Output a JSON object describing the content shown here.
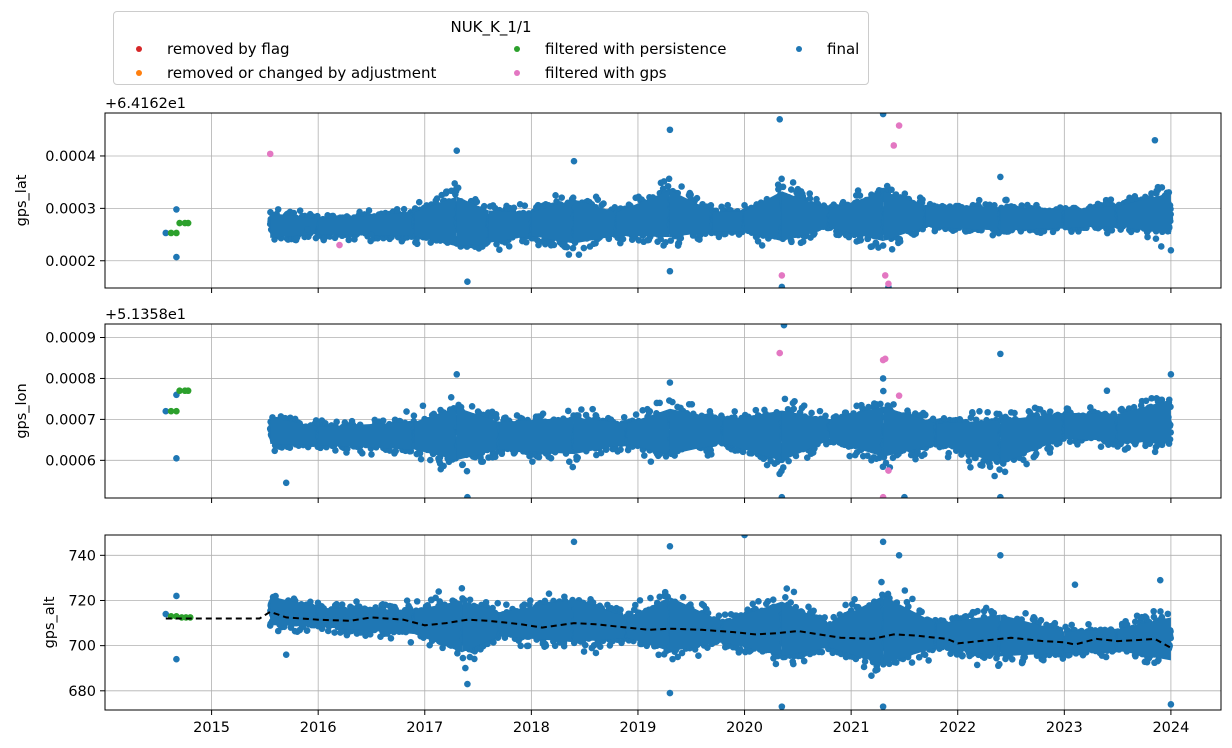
{
  "legend": {
    "title": "NUK_K_1/1",
    "entries": [
      {
        "label": "removed by flag",
        "color": "#d62728"
      },
      {
        "label": "removed or changed by adjustment",
        "color": "#ff7f0e"
      },
      {
        "label": "filtered with persistence",
        "color": "#2ca02c"
      },
      {
        "label": "filtered with gps",
        "color": "#e377c2"
      },
      {
        "label": "final",
        "color": "#1f77b4"
      }
    ]
  },
  "chart_data": [
    {
      "type": "scatter",
      "ylabel": "gps_lat",
      "offset_label": "+6.4162e1",
      "offset": 64.162,
      "ylim": [
        0.000148,
        0.000482
      ],
      "yticks": [
        0.0002,
        0.0003,
        0.0004
      ],
      "ytick_labels": [
        "0.0002",
        "0.0003",
        "0.0004"
      ],
      "grid": true,
      "final": {
        "points": [
          [
            2014.57,
            0.000253
          ],
          [
            2014.67,
            0.000298
          ],
          [
            2014.67,
            0.000207
          ],
          [
            2015.9,
            0.00026
          ],
          [
            2016.5,
            0.00025
          ],
          [
            2017.3,
            0.00041
          ],
          [
            2017.4,
            0.00016
          ],
          [
            2018.4,
            0.00039
          ],
          [
            2019.3,
            0.00045
          ],
          [
            2019.3,
            0.00018
          ],
          [
            2020.33,
            0.00047
          ],
          [
            2020.35,
            0.00015
          ],
          [
            2021.3,
            0.00048
          ],
          [
            2021.35,
            0.00015
          ],
          [
            2022.4,
            0.00036
          ],
          [
            2023.85,
            0.00043
          ],
          [
            2024.0,
            0.00022
          ]
        ],
        "envelope": [
          {
            "x": 2015.55,
            "lo": 0.000225,
            "hi": 0.00031,
            "s": 1e-05
          },
          {
            "x": 2016.0,
            "lo": 0.00024,
            "hi": 0.00029,
            "s": 1e-05
          },
          {
            "x": 2016.9,
            "lo": 0.00023,
            "hi": 0.00031,
            "s": 1.2e-05
          },
          {
            "x": 2017.3,
            "lo": 0.00019,
            "hi": 0.00036,
            "s": 1.2e-05
          },
          {
            "x": 2017.6,
            "lo": 0.00021,
            "hi": 0.00032,
            "s": 1.2e-05
          },
          {
            "x": 2018.0,
            "lo": 0.00023,
            "hi": 0.00031,
            "s": 1.2e-05
          },
          {
            "x": 2018.4,
            "lo": 0.0002,
            "hi": 0.00035,
            "s": 1.2e-05
          },
          {
            "x": 2018.8,
            "lo": 0.00023,
            "hi": 0.00031,
            "s": 1.2e-05
          },
          {
            "x": 2019.3,
            "lo": 0.00021,
            "hi": 0.00037,
            "s": 1.2e-05
          },
          {
            "x": 2019.7,
            "lo": 0.00024,
            "hi": 0.00031,
            "s": 1.2e-05
          },
          {
            "x": 2020.0,
            "lo": 0.00024,
            "hi": 0.00031,
            "s": 1.2e-05
          },
          {
            "x": 2020.35,
            "lo": 0.0002,
            "hi": 0.00037,
            "s": 1.2e-05
          },
          {
            "x": 2020.8,
            "lo": 0.00025,
            "hi": 0.00031,
            "s": 1.2e-05
          },
          {
            "x": 2021.3,
            "lo": 0.0002,
            "hi": 0.00037,
            "s": 1.2e-05
          },
          {
            "x": 2021.7,
            "lo": 0.00025,
            "hi": 0.00032,
            "s": 1.2e-05
          },
          {
            "x": 2022.4,
            "lo": 0.00024,
            "hi": 0.00032,
            "s": 1.2e-05
          },
          {
            "x": 2023.0,
            "lo": 0.00025,
            "hi": 0.00031,
            "s": 1.2e-05
          },
          {
            "x": 2023.5,
            "lo": 0.00025,
            "hi": 0.00032,
            "s": 1.2e-05
          },
          {
            "x": 2024.0,
            "lo": 0.00022,
            "hi": 0.00036,
            "s": 1.2e-05
          }
        ]
      },
      "filtered_with_persistence": [
        [
          2014.62,
          0.000253
        ],
        [
          2014.67,
          0.000253
        ],
        [
          2014.7,
          0.000272
        ],
        [
          2014.75,
          0.000272
        ],
        [
          2014.78,
          0.000272
        ]
      ],
      "filtered_with_gps": [
        [
          2015.55,
          0.000404
        ],
        [
          2016.2,
          0.00023
        ],
        [
          2020.35,
          0.000172
        ],
        [
          2021.32,
          0.000172
        ],
        [
          2021.35,
          0.000156
        ],
        [
          2021.4,
          0.00042
        ],
        [
          2021.45,
          0.000458
        ]
      ]
    },
    {
      "type": "scatter",
      "ylabel": "gps_lon",
      "offset_label": "+5.1358e1",
      "offset": 51.358,
      "ylim": [
        0.000508,
        0.000933
      ],
      "yticks": [
        0.0006,
        0.0007,
        0.0008,
        0.0009
      ],
      "ytick_labels": [
        "0.0006",
        "0.0007",
        "0.0008",
        "0.0009"
      ],
      "grid": true,
      "final": {
        "points": [
          [
            2014.57,
            0.00072
          ],
          [
            2014.67,
            0.00076
          ],
          [
            2014.67,
            0.000605
          ],
          [
            2015.7,
            0.000545
          ],
          [
            2017.3,
            0.00081
          ],
          [
            2017.4,
            0.00051
          ],
          [
            2019.3,
            0.00079
          ],
          [
            2020.37,
            0.00093
          ],
          [
            2020.35,
            0.00051
          ],
          [
            2021.3,
            0.0008
          ],
          [
            2021.5,
            0.00051
          ],
          [
            2022.4,
            0.00086
          ],
          [
            2022.4,
            0.00051
          ],
          [
            2023.4,
            0.00077
          ],
          [
            2024.0,
            0.00081
          ]
        ],
        "envelope": [
          {
            "x": 2015.55,
            "lo": 0.000615,
            "hi": 0.00073,
            "s": 1.2e-05
          },
          {
            "x": 2016.0,
            "lo": 0.00062,
            "hi": 0.0007,
            "s": 1.2e-05
          },
          {
            "x": 2016.9,
            "lo": 0.0006,
            "hi": 0.00072,
            "s": 1.2e-05
          },
          {
            "x": 2017.3,
            "lo": 0.00055,
            "hi": 0.00078,
            "s": 1.4e-05
          },
          {
            "x": 2017.7,
            "lo": 0.0006,
            "hi": 0.00072,
            "s": 1.2e-05
          },
          {
            "x": 2018.4,
            "lo": 0.00058,
            "hi": 0.00074,
            "s": 1.4e-05
          },
          {
            "x": 2018.9,
            "lo": 0.00062,
            "hi": 0.00071,
            "s": 1.2e-05
          },
          {
            "x": 2019.3,
            "lo": 0.00057,
            "hi": 0.00077,
            "s": 1.4e-05
          },
          {
            "x": 2019.8,
            "lo": 0.00062,
            "hi": 0.00072,
            "s": 1.2e-05
          },
          {
            "x": 2020.35,
            "lo": 0.00055,
            "hi": 0.00077,
            "s": 1.4e-05
          },
          {
            "x": 2020.8,
            "lo": 0.00063,
            "hi": 0.00072,
            "s": 1.2e-05
          },
          {
            "x": 2021.3,
            "lo": 0.00056,
            "hi": 0.00078,
            "s": 1.4e-05
          },
          {
            "x": 2021.8,
            "lo": 0.00062,
            "hi": 0.00071,
            "s": 1.2e-05
          },
          {
            "x": 2022.4,
            "lo": 0.00055,
            "hi": 0.00074,
            "s": 1.4e-05
          },
          {
            "x": 2023.0,
            "lo": 0.00063,
            "hi": 0.00074,
            "s": 1.2e-05
          },
          {
            "x": 2023.5,
            "lo": 0.00062,
            "hi": 0.00074,
            "s": 1.2e-05
          },
          {
            "x": 2024.0,
            "lo": 0.0006,
            "hi": 0.00079,
            "s": 1.4e-05
          }
        ]
      },
      "filtered_with_persistence": [
        [
          2014.62,
          0.00072
        ],
        [
          2014.67,
          0.00072
        ],
        [
          2014.7,
          0.00077
        ],
        [
          2014.75,
          0.00077
        ],
        [
          2014.78,
          0.00077
        ]
      ],
      "filtered_with_gps": [
        [
          2020.33,
          0.000862
        ],
        [
          2021.3,
          0.000845
        ],
        [
          2021.32,
          0.000848
        ],
        [
          2021.3,
          0.00051
        ],
        [
          2021.35,
          0.000575
        ],
        [
          2021.45,
          0.000758
        ]
      ]
    },
    {
      "type": "scatter",
      "ylabel": "gps_alt",
      "ylim": [
        671.5,
        749
      ],
      "yticks": [
        680,
        700,
        720,
        740
      ],
      "ytick_labels": [
        "680",
        "700",
        "720",
        "740"
      ],
      "xlim": [
        2014.0,
        2024.47
      ],
      "xticks": [
        2015,
        2016,
        2017,
        2018,
        2019,
        2020,
        2021,
        2022,
        2023,
        2024
      ],
      "xtick_labels": [
        "2015",
        "2016",
        "2017",
        "2018",
        "2019",
        "2020",
        "2021",
        "2022",
        "2023",
        "2024"
      ],
      "grid": true,
      "final": {
        "points": [
          [
            2014.57,
            714
          ],
          [
            2014.67,
            722
          ],
          [
            2014.67,
            694
          ],
          [
            2015.7,
            696
          ],
          [
            2017.4,
            683
          ],
          [
            2018.4,
            746
          ],
          [
            2019.3,
            744
          ],
          [
            2019.3,
            679
          ],
          [
            2020.0,
            749
          ],
          [
            2020.35,
            673
          ],
          [
            2021.3,
            746
          ],
          [
            2021.3,
            673
          ],
          [
            2021.45,
            740
          ],
          [
            2022.4,
            740
          ],
          [
            2023.1,
            727
          ],
          [
            2023.9,
            729
          ],
          [
            2024.0,
            674
          ]
        ],
        "envelope": [
          {
            "x": 2015.55,
            "lo": 704,
            "hi": 727,
            "s": 1.2
          },
          {
            "x": 2016.0,
            "lo": 705,
            "hi": 720,
            "s": 1.2
          },
          {
            "x": 2016.9,
            "lo": 701,
            "hi": 720,
            "s": 1.2
          },
          {
            "x": 2017.35,
            "lo": 688,
            "hi": 729,
            "s": 1.5
          },
          {
            "x": 2017.7,
            "lo": 700,
            "hi": 719,
            "s": 1.2
          },
          {
            "x": 2018.4,
            "lo": 694,
            "hi": 728,
            "s": 1.5
          },
          {
            "x": 2018.9,
            "lo": 700,
            "hi": 716,
            "s": 1.2
          },
          {
            "x": 2019.3,
            "lo": 688,
            "hi": 731,
            "s": 1.5
          },
          {
            "x": 2019.8,
            "lo": 698,
            "hi": 714,
            "s": 1.2
          },
          {
            "x": 2020.35,
            "lo": 686,
            "hi": 729,
            "s": 1.5
          },
          {
            "x": 2020.8,
            "lo": 695,
            "hi": 714,
            "s": 1.2
          },
          {
            "x": 2021.3,
            "lo": 680,
            "hi": 734,
            "s": 1.6
          },
          {
            "x": 2021.8,
            "lo": 695,
            "hi": 714,
            "s": 1.2
          },
          {
            "x": 2022.4,
            "lo": 688,
            "hi": 721,
            "s": 1.5
          },
          {
            "x": 2023.0,
            "lo": 693,
            "hi": 710,
            "s": 1.2
          },
          {
            "x": 2023.5,
            "lo": 694,
            "hi": 711,
            "s": 1.2
          },
          {
            "x": 2024.0,
            "lo": 686,
            "hi": 720,
            "s": 1.5
          }
        ]
      },
      "filtered_with_persistence": [
        [
          2014.62,
          713
        ],
        [
          2014.67,
          713
        ],
        [
          2014.72,
          712.5
        ],
        [
          2014.76,
          712.5
        ],
        [
          2014.8,
          712.5
        ]
      ],
      "trend_line": [
        [
          2014.57,
          712
        ],
        [
          2015.45,
          712
        ],
        [
          2015.55,
          715
        ],
        [
          2015.7,
          712.5
        ],
        [
          2016.0,
          711.5
        ],
        [
          2016.3,
          711
        ],
        [
          2016.5,
          712.5
        ],
        [
          2016.8,
          711.5
        ],
        [
          2017.0,
          709
        ],
        [
          2017.2,
          710
        ],
        [
          2017.4,
          711.5
        ],
        [
          2017.6,
          711
        ],
        [
          2017.9,
          709.5
        ],
        [
          2018.1,
          708
        ],
        [
          2018.4,
          710
        ],
        [
          2018.6,
          709.5
        ],
        [
          2018.9,
          708
        ],
        [
          2019.1,
          707
        ],
        [
          2019.3,
          707.5
        ],
        [
          2019.6,
          707
        ],
        [
          2019.9,
          706
        ],
        [
          2020.1,
          705
        ],
        [
          2020.3,
          705.5
        ],
        [
          2020.5,
          706.5
        ],
        [
          2020.7,
          705
        ],
        [
          2020.9,
          703.5
        ],
        [
          2021.2,
          703
        ],
        [
          2021.4,
          705
        ],
        [
          2021.6,
          704.5
        ],
        [
          2021.9,
          703
        ],
        [
          2022.0,
          701
        ],
        [
          2022.2,
          702
        ],
        [
          2022.5,
          703.5
        ],
        [
          2022.8,
          702
        ],
        [
          2023.0,
          701.5
        ],
        [
          2023.1,
          700.5
        ],
        [
          2023.3,
          703
        ],
        [
          2023.5,
          702
        ],
        [
          2023.7,
          702.5
        ],
        [
          2023.85,
          703
        ],
        [
          2024.0,
          699
        ]
      ]
    }
  ]
}
